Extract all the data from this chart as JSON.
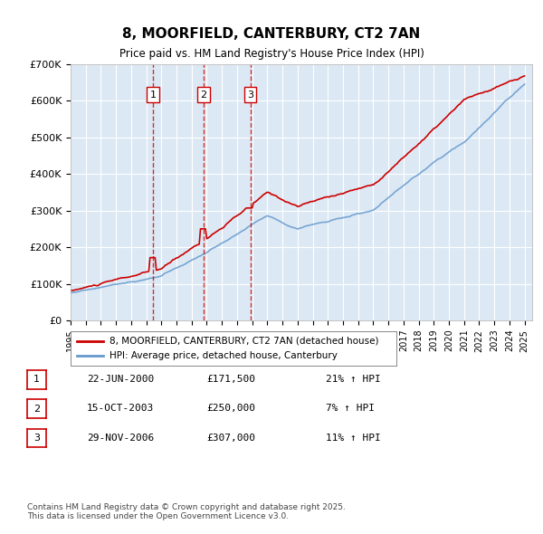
{
  "title": "8, MOORFIELD, CANTERBURY, CT2 7AN",
  "subtitle": "Price paid vs. HM Land Registry's House Price Index (HPI)",
  "background_color": "#dce9f5",
  "plot_bg_color": "#dce9f5",
  "x_start_year": 1995,
  "x_end_year": 2025,
  "y_min": 0,
  "y_max": 700000,
  "y_ticks": [
    0,
    100000,
    200000,
    300000,
    400000,
    500000,
    600000,
    700000
  ],
  "y_tick_labels": [
    "£0",
    "£100K",
    "£200K",
    "£300K",
    "£400K",
    "£500K",
    "£600K",
    "£700K"
  ],
  "sale_dates": [
    "2000-06-22",
    "2003-10-15",
    "2006-11-29"
  ],
  "sale_prices": [
    171500,
    250000,
    307000
  ],
  "sale_labels": [
    "1",
    "2",
    "3"
  ],
  "sale_info": [
    {
      "num": "1",
      "date": "22-JUN-2000",
      "price": "£171,500",
      "hpi": "21% ↑ HPI"
    },
    {
      "num": "2",
      "date": "15-OCT-2003",
      "price": "£250,000",
      "hpi": "7% ↑ HPI"
    },
    {
      "num": "3",
      "date": "29-NOV-2006",
      "price": "£307,000",
      "hpi": "11% ↑ HPI"
    }
  ],
  "legend_line1": "8, MOORFIELD, CANTERBURY, CT2 7AN (detached house)",
  "legend_line2": "HPI: Average price, detached house, Canterbury",
  "footer": "Contains HM Land Registry data © Crown copyright and database right 2025.\nThis data is licensed under the Open Government Licence v3.0.",
  "red_line_color": "#cc0000",
  "blue_line_color": "#6699cc",
  "vline_color": "#cc0000",
  "label_box_color": "#ffffff",
  "label_box_edge": "#cc0000"
}
